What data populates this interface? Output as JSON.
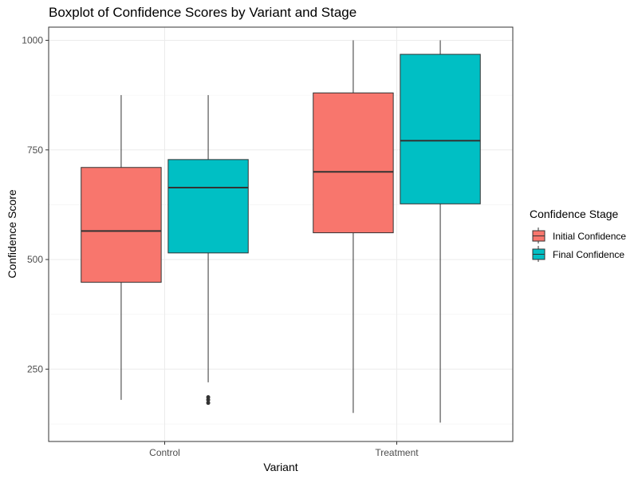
{
  "chart_data": {
    "type": "boxplot",
    "title": "Boxplot of Confidence Scores by Variant and Stage",
    "xlabel": "Variant",
    "ylabel": "Confidence Score",
    "categories": [
      "Control",
      "Treatment"
    ],
    "ylim": [
      85,
      1030
    ],
    "yticks": [
      250,
      500,
      750,
      1000
    ],
    "grid": true,
    "legend": {
      "title": "Confidence Stage",
      "position": "right",
      "entries": [
        "Initial Confidence",
        "Final Confidence"
      ]
    },
    "series": [
      {
        "name": "Initial Confidence",
        "color": "#F8766D",
        "boxes": [
          {
            "category": "Control",
            "whisker_low": 180,
            "q1": 448,
            "median": 565,
            "q3": 710,
            "whisker_high": 875,
            "outliers": []
          },
          {
            "category": "Treatment",
            "whisker_low": 150,
            "q1": 561,
            "median": 700,
            "q3": 880,
            "whisker_high": 1000,
            "outliers": []
          }
        ]
      },
      {
        "name": "Final Confidence",
        "color": "#00BFC4",
        "boxes": [
          {
            "category": "Control",
            "whisker_low": 220,
            "q1": 515,
            "median": 664,
            "q3": 728,
            "whisker_high": 875,
            "outliers": [
              173,
              180,
              186
            ]
          },
          {
            "category": "Treatment",
            "whisker_low": 128,
            "q1": 627,
            "median": 771,
            "q3": 968,
            "whisker_high": 1000,
            "outliers": []
          }
        ]
      }
    ]
  }
}
